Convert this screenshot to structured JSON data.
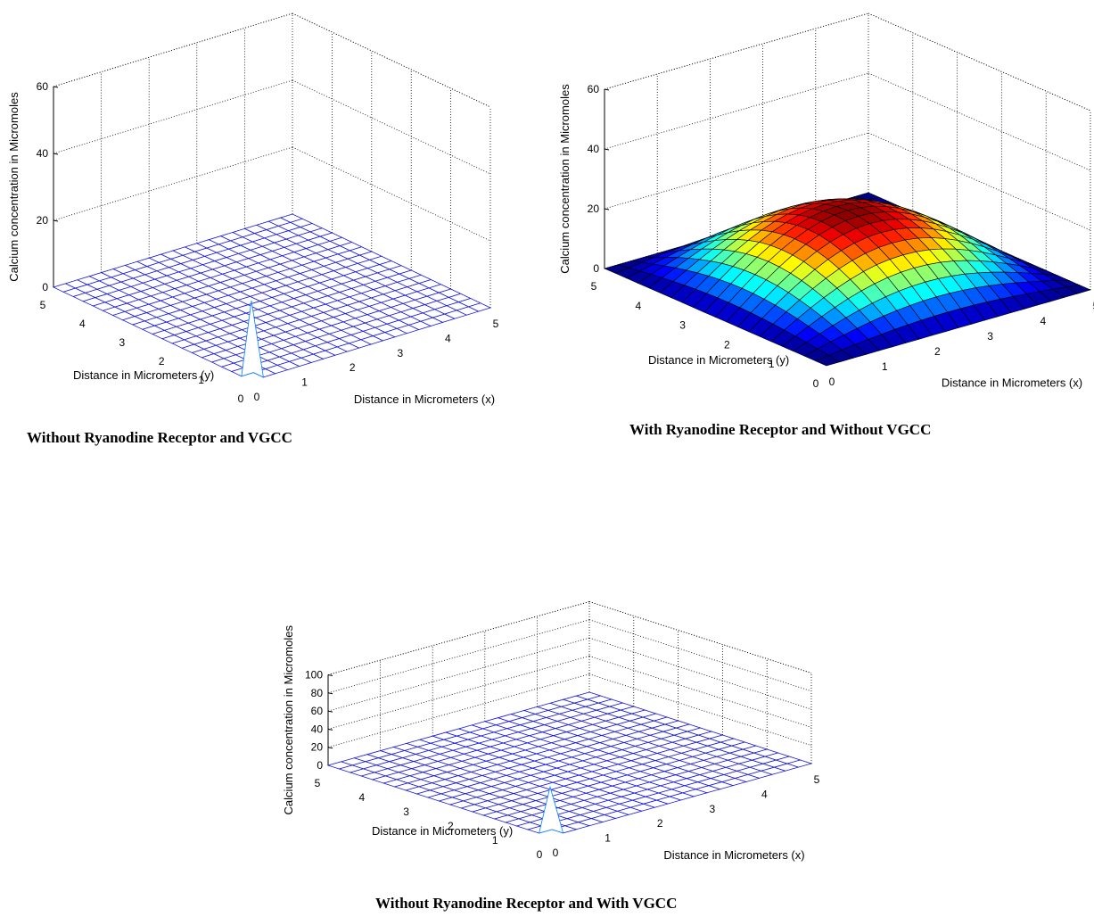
{
  "chart_data": [
    {
      "type": "surface",
      "title": "Without Ryanodine Receptor and VGCC",
      "xlabel": "Distance in Micrometers (x)",
      "ylabel": "Distance in Micrometers (y)",
      "zlabel": "Calcium concentration in Micromoles",
      "xlim": [
        0,
        5
      ],
      "ylim": [
        0,
        5
      ],
      "zlim": [
        0,
        60
      ],
      "xticks": [
        "0",
        "1",
        "2",
        "3",
        "4",
        "5"
      ],
      "yticks": [
        "0",
        "1",
        "2",
        "3",
        "4",
        "5"
      ],
      "zticks": [
        "0",
        "20",
        "40",
        "60"
      ],
      "grid": true,
      "colormap": "jet",
      "surface": {
        "shape": "spike",
        "baseline": 0,
        "peak_value": 24,
        "peak_x": 0,
        "peak_y": 0
      }
    },
    {
      "type": "surface",
      "title": "With Ryanodine Receptor and Without  VGCC",
      "xlabel": "Distance in Micrometers (x)",
      "ylabel": "Distance in Micrometers (y)",
      "zlabel": "Calcium concentration in Micromoles",
      "xlim": [
        0,
        5
      ],
      "ylim": [
        0,
        5
      ],
      "zlim": [
        0,
        60
      ],
      "xticks": [
        "0",
        "1",
        "2",
        "3",
        "4",
        "5"
      ],
      "yticks": [
        "0",
        "1",
        "2",
        "3",
        "4",
        "5"
      ],
      "zticks": [
        "0",
        "20",
        "40",
        "60"
      ],
      "grid": true,
      "colormap": "jet",
      "surface": {
        "shape": "dome",
        "baseline": 0,
        "peak_value": 23,
        "peak_x": 2.5,
        "peak_y": 2.5
      }
    },
    {
      "type": "surface",
      "title": "Without Ryanodine Receptor and With  VGCC",
      "xlabel": "Distance in Micrometers (x)",
      "ylabel": "Distance in Micrometers (y)",
      "zlabel": "Calcium concentration in Micromoles",
      "xlim": [
        0,
        5
      ],
      "ylim": [
        0,
        5
      ],
      "zlim": [
        0,
        100
      ],
      "xticks": [
        "0",
        "1",
        "2",
        "3",
        "4",
        "5"
      ],
      "yticks": [
        "0",
        "1",
        "2",
        "3",
        "4",
        "5"
      ],
      "zticks": [
        "0",
        "20",
        "40",
        "60",
        "80",
        "100"
      ],
      "grid": true,
      "colormap": "jet",
      "surface": {
        "shape": "spike",
        "baseline": 0,
        "peak_value": 55,
        "peak_x": 0,
        "peak_y": 0
      }
    }
  ]
}
